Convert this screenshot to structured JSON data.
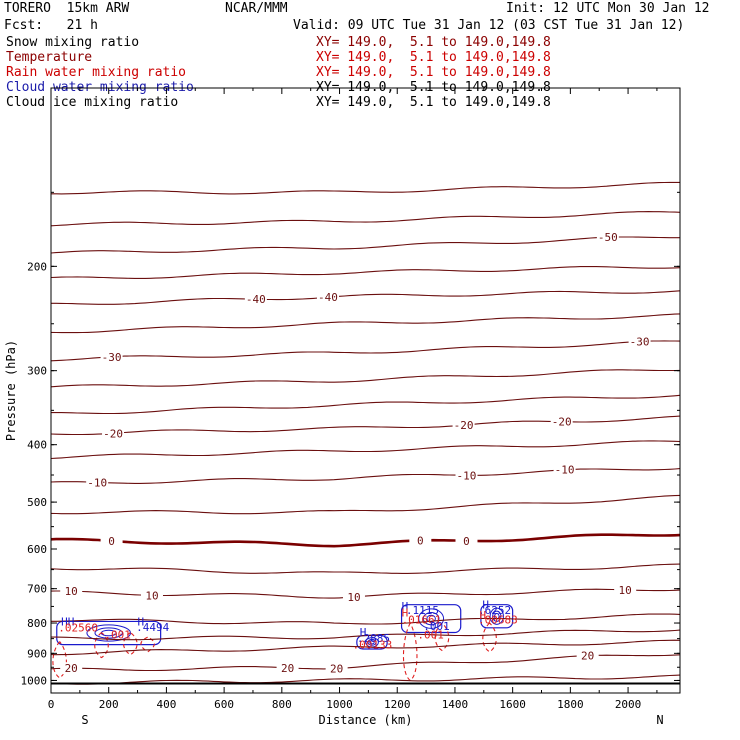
{
  "header": {
    "model": "TORERO  15km ARW",
    "center": "NCAR/MMM",
    "init": "Init: 12 UTC Mon 30 Jan 12",
    "fcst": "Fcst:   21 h",
    "valid": "Valid: 09 UTC Tue 31 Jan 12 (03 CST Tue 31 Jan 12)"
  },
  "legend": [
    {
      "label": "Snow mixing ratio",
      "xy": "XY= 149.0,  5.1 to 149.0,149.8",
      "color": "#000000",
      "xy_color": "#8b0000"
    },
    {
      "label": "Temperature",
      "xy": "XY= 149.0,  5.1 to 149.0,149.8",
      "color": "#8b0000",
      "xy_color": "#cc0000"
    },
    {
      "label": "Rain water mixing ratio",
      "xy": "XY= 149.0,  5.1 to 149.0,149.8",
      "color": "#cc0000",
      "xy_color": "#cc0000"
    },
    {
      "label": "Cloud water mixing ratio",
      "xy": "XY= 149.0,  5.1 to 149.0,149.8",
      "color": "#1a1aaa",
      "xy_color": "#000000"
    },
    {
      "label": "Cloud ice mixing ratio",
      "xy": "XY= 149.0,  5.1 to 149.0,149.8",
      "color": "#000000",
      "xy_color": "#000000"
    }
  ],
  "colors": {
    "temperature": "#6b0f0f",
    "freezing": "#7a0000",
    "rain": "#e02020",
    "cloud_water": "#1a1acc",
    "axis": "#000000"
  },
  "chart_data": {
    "type": "line",
    "xlabel": "Distance (km)",
    "ylabel": "Pressure (hPa)",
    "xlim": [
      0,
      2180
    ],
    "ylim": [
      1050,
      100
    ],
    "y_scale": "log",
    "x_ticks": [
      "0",
      "200",
      "400",
      "600",
      "800",
      "1000",
      "1200",
      "1400",
      "1600",
      "1800",
      "2000"
    ],
    "y_ticks": [
      "200",
      "300",
      "400",
      "500",
      "600",
      "700",
      "800",
      "900",
      "1000"
    ],
    "x_end_labels": {
      "left": "S",
      "right": "N"
    },
    "grid": false,
    "temperature_contours": [
      {
        "p_left": 150,
        "p_mid": 150,
        "p_right": 145,
        "labels": []
      },
      {
        "p_left": 170,
        "p_mid": 168,
        "p_right": 162,
        "labels": []
      },
      {
        "p_left": 190,
        "p_mid": 186,
        "p_right": 178,
        "labels": [
          {
            "text": "-50",
            "x": 1930
          }
        ]
      },
      {
        "p_left": 210,
        "p_mid": 205,
        "p_right": 200,
        "labels": []
      },
      {
        "p_left": 232,
        "p_mid": 225,
        "p_right": 220,
        "labels": [
          {
            "text": "-40",
            "x": 710
          },
          {
            "text": "-40",
            "x": 960
          }
        ]
      },
      {
        "p_left": 258,
        "p_mid": 250,
        "p_right": 242,
        "labels": []
      },
      {
        "p_left": 287,
        "p_mid": 280,
        "p_right": 268,
        "labels": [
          {
            "text": "-30",
            "x": 210
          },
          {
            "text": "-30",
            "x": 2040
          }
        ]
      },
      {
        "p_left": 320,
        "p_mid": 312,
        "p_right": 298,
        "labels": []
      },
      {
        "p_left": 355,
        "p_mid": 343,
        "p_right": 330,
        "labels": []
      },
      {
        "p_left": 383,
        "p_mid": 376,
        "p_right": 360,
        "labels": [
          {
            "text": "-20",
            "x": 215
          },
          {
            "text": "-20",
            "x": 1430
          },
          {
            "text": "-20",
            "x": 1770
          }
        ]
      },
      {
        "p_left": 420,
        "p_mid": 410,
        "p_right": 395,
        "labels": []
      },
      {
        "p_left": 465,
        "p_mid": 456,
        "p_right": 437,
        "labels": [
          {
            "text": "-10",
            "x": 160
          },
          {
            "text": "-10",
            "x": 1440
          },
          {
            "text": "-10",
            "x": 1780
          }
        ]
      },
      {
        "p_left": 520,
        "p_mid": 520,
        "p_right": 490,
        "labels": []
      },
      {
        "p_left": 580,
        "p_mid": 590,
        "p_right": 565,
        "bold": true,
        "labels": [
          {
            "text": "0",
            "x": 210
          },
          {
            "text": "0",
            "x": 1280
          },
          {
            "text": "0",
            "x": 1440
          }
        ]
      },
      {
        "p_left": 645,
        "p_mid": 660,
        "p_right": 640,
        "labels": []
      },
      {
        "p_left": 710,
        "p_mid": 722,
        "p_right": 700,
        "labels": [
          {
            "text": "10",
            "x": 70
          },
          {
            "text": "10",
            "x": 350
          },
          {
            "text": "10",
            "x": 1050
          },
          {
            "text": "10",
            "x": 1990
          }
        ]
      },
      {
        "p_left": 790,
        "p_mid": 802,
        "p_right": 775,
        "labels": []
      },
      {
        "p_left": 850,
        "p_mid": 845,
        "p_right": 820,
        "labels": []
      },
      {
        "p_left": 900,
        "p_mid": 880,
        "p_right": 860,
        "labels": []
      },
      {
        "p_left": 960,
        "p_mid": 950,
        "p_right": 900,
        "labels": [
          {
            "text": "20",
            "x": 70
          },
          {
            "text": "20",
            "x": 820
          },
          {
            "text": "20",
            "x": 990
          },
          {
            "text": "20",
            "x": 1860
          }
        ]
      },
      {
        "p_left": 1010,
        "p_mid": 1000,
        "p_right": 985,
        "labels": []
      }
    ],
    "surface_pressure": 1012,
    "rain_cells": [
      {
        "x": 30,
        "top": 860,
        "bottom": 990
      },
      {
        "x": 175,
        "top": 830,
        "bottom": 915
      },
      {
        "x": 275,
        "top": 830,
        "bottom": 905
      },
      {
        "x": 335,
        "top": 845,
        "bottom": 895
      },
      {
        "x": 1245,
        "top": 800,
        "bottom": 1000
      },
      {
        "x": 1355,
        "top": 800,
        "bottom": 890
      },
      {
        "x": 1520,
        "top": 800,
        "bottom": 895
      }
    ],
    "cloud_regions": [
      {
        "x0": 20,
        "x1": 380,
        "p0": 795,
        "p1": 870
      },
      {
        "x0": 1060,
        "x1": 1165,
        "p0": 840,
        "p1": 885
      },
      {
        "x0": 1215,
        "x1": 1420,
        "p0": 745,
        "p1": 830
      },
      {
        "x0": 1490,
        "x1": 1600,
        "p0": 745,
        "p1": 815
      }
    ],
    "annotations": [
      {
        "text": "HH",
        "x": 35,
        "p": 808,
        "color": "cloud_water"
      },
      {
        "text": ".02560",
        "x": 25,
        "p": 827,
        "color": "rain"
      },
      {
        "text": ".001",
        "x": 185,
        "p": 850,
        "color": "rain"
      },
      {
        "text": "H",
        "x": 300,
        "p": 808,
        "color": "cloud_water"
      },
      {
        "text": ".4494",
        "x": 295,
        "p": 825,
        "color": "cloud_water"
      },
      {
        "text": "H",
        "x": 1070,
        "p": 842,
        "color": "cloud_water"
      },
      {
        "text": ".2885",
        "x": 1060,
        "p": 862,
        "color": "cloud_water"
      },
      {
        "text": ".00133",
        "x": 1045,
        "p": 883,
        "color": "rain"
      },
      {
        "text": "H",
        "x": 1215,
        "p": 760,
        "color": "cloud_water"
      },
      {
        "text": "H",
        "x": 1215,
        "p": 780,
        "color": "rain"
      },
      {
        "text": ".1115",
        "x": 1230,
        "p": 772,
        "color": "cloud_water"
      },
      {
        "text": ".01661",
        "x": 1215,
        "p": 802,
        "color": "rain"
      },
      {
        "text": ".001",
        "x": 1290,
        "p": 822,
        "color": "cloud_water"
      },
      {
        "text": ".001",
        "x": 1270,
        "p": 850,
        "color": "rain"
      },
      {
        "text": "H",
        "x": 1495,
        "p": 756,
        "color": "cloud_water"
      },
      {
        "text": ".6252",
        "x": 1480,
        "p": 773,
        "color": "cloud_water"
      },
      {
        "text": ".00683",
        "x": 1480,
        "p": 802,
        "color": "rain"
      },
      {
        "text": "H",
        "x": 1485,
        "p": 788,
        "color": "rain"
      }
    ]
  }
}
